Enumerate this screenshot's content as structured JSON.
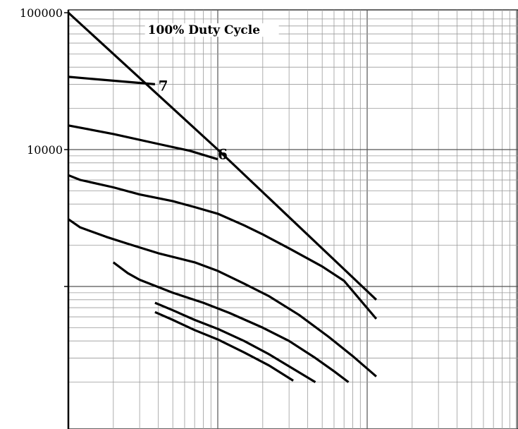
{
  "chart_data": {
    "type": "line",
    "x_scale": "log",
    "y_scale": "log",
    "grid": true,
    "xlim": [
      1,
      2000
    ],
    "ylim": [
      200,
      100000
    ],
    "y_tick_labels": [
      {
        "value": 100000,
        "label": "100000"
      },
      {
        "value": 10000,
        "label": "10000"
      }
    ],
    "annotations": [
      {
        "text": "100% Duty Cycle",
        "x": 3.4,
        "y": 70000
      },
      {
        "text": "7",
        "x": 4.0,
        "y": 27000
      },
      {
        "text": "6",
        "x": 10.0,
        "y": 8500
      }
    ],
    "series": [
      {
        "id": "duty-100",
        "points": [
          [
            1,
            100000
          ],
          [
            10,
            10000
          ],
          [
            115,
            800
          ]
        ]
      },
      {
        "id": "duty-7",
        "points": [
          [
            1,
            34000
          ],
          [
            3.8,
            30000
          ]
        ]
      },
      {
        "id": "duty-6",
        "points": [
          [
            1,
            15000
          ],
          [
            2,
            13000
          ],
          [
            4,
            11000
          ],
          [
            6.5,
            9800
          ],
          [
            10,
            8500
          ]
        ]
      },
      {
        "id": "curve-a",
        "points": [
          [
            1,
            6500
          ],
          [
            1.2,
            6000
          ],
          [
            2,
            5300
          ],
          [
            3,
            4700
          ],
          [
            5,
            4200
          ],
          [
            7,
            3800
          ],
          [
            10,
            3400
          ],
          [
            15,
            2800
          ],
          [
            20,
            2400
          ],
          [
            30,
            1900
          ],
          [
            50,
            1400
          ],
          [
            70,
            1100
          ],
          [
            115,
            580
          ]
        ]
      },
      {
        "id": "curve-b",
        "points": [
          [
            1,
            3100
          ],
          [
            1.2,
            2700
          ],
          [
            1.8,
            2300
          ],
          [
            2.5,
            2050
          ],
          [
            4,
            1750
          ],
          [
            7,
            1500
          ],
          [
            10,
            1300
          ],
          [
            15,
            1050
          ],
          [
            22,
            850
          ],
          [
            35,
            620
          ],
          [
            55,
            430
          ],
          [
            80,
            310
          ],
          [
            115,
            220
          ]
        ]
      },
      {
        "id": "curve-c",
        "points": [
          [
            2.0,
            1500
          ],
          [
            2.5,
            1250
          ],
          [
            3,
            1120
          ],
          [
            5,
            900
          ],
          [
            8,
            760
          ],
          [
            12,
            640
          ],
          [
            20,
            500
          ],
          [
            30,
            400
          ],
          [
            45,
            300
          ],
          [
            60,
            240
          ],
          [
            75,
            200
          ]
        ]
      },
      {
        "id": "curve-d",
        "points": [
          [
            3.8,
            760
          ],
          [
            5,
            670
          ],
          [
            7,
            570
          ],
          [
            10,
            490
          ],
          [
            15,
            400
          ],
          [
            22,
            320
          ],
          [
            32,
            250
          ],
          [
            45,
            200
          ]
        ]
      },
      {
        "id": "curve-e",
        "points": [
          [
            3.8,
            650
          ],
          [
            5,
            570
          ],
          [
            7,
            480
          ],
          [
            10,
            410
          ],
          [
            15,
            330
          ],
          [
            22,
            265
          ],
          [
            32,
            205
          ]
        ]
      }
    ]
  }
}
